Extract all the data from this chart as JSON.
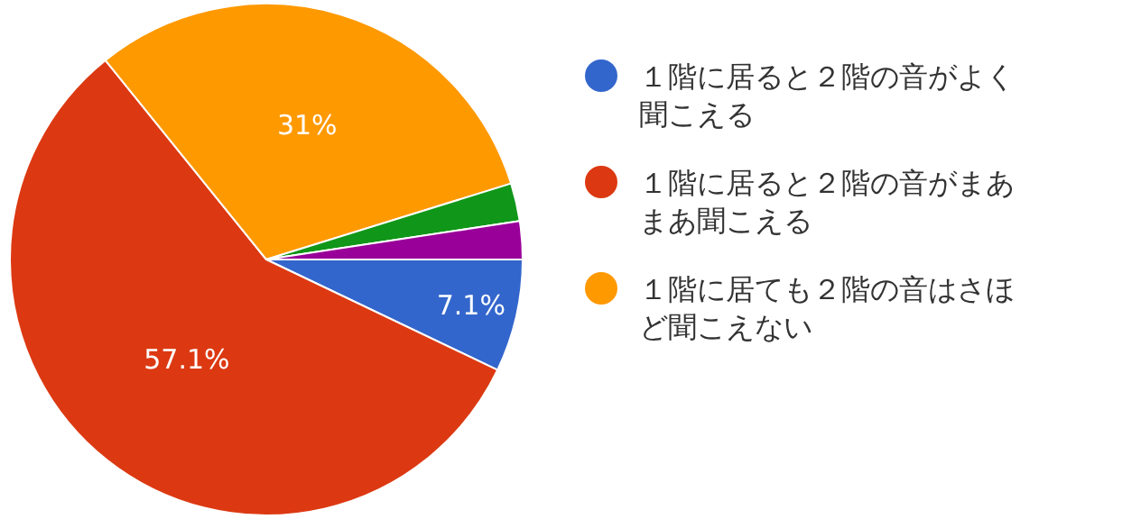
{
  "chart_data": {
    "type": "pie",
    "categories": [
      "１階に居ると２階の音がよく聞こえる",
      "１階に居ると２階の音がまあまあ聞こえる",
      "１階に居ても２階の音はさほど聞こえない",
      null,
      null
    ],
    "values": [
      7.1,
      57.1,
      31,
      2.4,
      2.4
    ],
    "value_labels": [
      "7.1%",
      "57.1%",
      "31%",
      null,
      null
    ],
    "colors": [
      "#3366cc",
      "#dc3912",
      "#ff9900",
      "#109618",
      "#990099"
    ],
    "legend": "right"
  }
}
